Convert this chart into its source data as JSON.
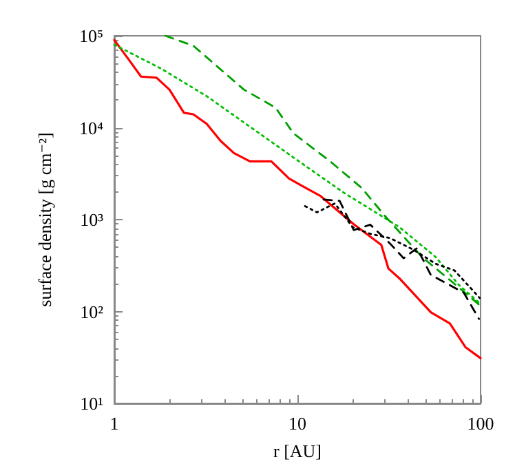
{
  "chart_data": {
    "type": "line",
    "xlabel": "r [AU]",
    "ylabel": "surface density [g cm⁻²]",
    "log": "xy",
    "grid": false,
    "marker": "none",
    "xlim": [
      1,
      100
    ],
    "xticks": [
      1,
      10,
      100
    ],
    "ylim": [
      10,
      100000
    ],
    "yticks": [
      {
        "value": 10,
        "label": "10¹"
      },
      {
        "value": 100,
        "label": "10²"
      },
      {
        "value": 1000,
        "label": "10³"
      },
      {
        "value": 10000,
        "label": "10⁴"
      },
      {
        "value": 100000,
        "label": "10⁵"
      }
    ],
    "series": [
      {
        "color": "#ff0000",
        "line_style": "solid",
        "x": [
          1,
          1.2,
          1.4,
          1.7,
          2,
          2.4,
          2.7,
          3.2,
          3.8,
          4.5,
          5.5,
          6.5,
          7.2,
          9,
          10.7,
          13.4,
          20.3,
          28.7,
          31.4,
          36,
          53.5,
          68,
          82.6,
          100
        ],
        "values": [
          90000,
          55000,
          36000,
          35000,
          26000,
          14500,
          14000,
          11000,
          7200,
          5300,
          4300,
          4300,
          4300,
          2800,
          2300,
          1800,
          890,
          530,
          293,
          230,
          98,
          74,
          41,
          31
        ]
      },
      {
        "color": "#00c000",
        "line_style": "dotted",
        "x": [
          1,
          1.8,
          3.2,
          5.6,
          10.2,
          18,
          36,
          57,
          76,
          99
        ],
        "values": [
          80000,
          44000,
          22000,
          10000,
          4300,
          1950,
          830,
          390,
          195,
          123
        ]
      },
      {
        "color": "#00a000",
        "line_style": "dashed",
        "x": [
          1.9,
          2.7,
          5.1,
          7.6,
          9.5,
          15.1,
          22.5,
          30,
          48,
          68,
          100
        ],
        "values": [
          100000,
          78000,
          26000,
          16500,
          8700,
          4300,
          2200,
          1100,
          390,
          220,
          115
        ]
      },
      {
        "color": "#000000",
        "line_style": "dashed",
        "x": [
          13.9,
          17,
          20.3,
          25,
          32,
          38,
          45,
          53.5,
          63,
          81,
          98
        ],
        "values": [
          1650,
          1600,
          770,
          880,
          550,
          380,
          490,
          250,
          210,
          160,
          83
        ]
      },
      {
        "color": "#000000",
        "line_style": "dotted",
        "x": [
          11,
          12.8,
          16,
          20,
          25,
          32,
          43,
          57,
          72,
          99
        ],
        "values": [
          1400,
          1200,
          1500,
          830,
          700,
          630,
          470,
          330,
          280,
          140
        ]
      }
    ]
  }
}
